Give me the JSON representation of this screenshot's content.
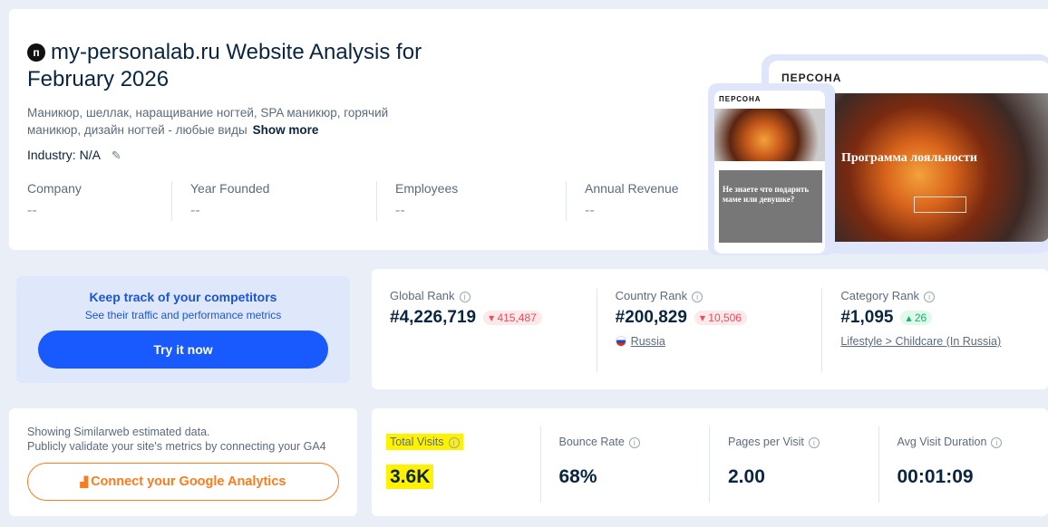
{
  "header": {
    "favicon_letter": "п",
    "title": "my-personalab.ru Website Analysis for February 2026",
    "description": "Маникюр, шеллак, наращивание ногтей, SPA маникюр, горячий маникюр, дизайн ногтей - любые виды",
    "show_more": "Show more",
    "industry": "Industry: N/A",
    "facts": [
      {
        "label": "Company",
        "value": "--"
      },
      {
        "label": "Year Founded",
        "value": "--"
      },
      {
        "label": "Employees",
        "value": "--"
      },
      {
        "label": "Annual Revenue",
        "value": "--"
      }
    ],
    "preview": {
      "logo": "ПЕРСОНА",
      "hero_text": "Программа лояльности",
      "mobile_text": "Не знаете что подарить маме или девушке?"
    }
  },
  "promo": {
    "title": "Keep track of your competitors",
    "subtitle": "See their traffic and performance metrics",
    "button": "Try it now"
  },
  "ranks": [
    {
      "label": "Global Rank",
      "value": "#4,226,719",
      "change": "415,487",
      "direction": "down"
    },
    {
      "label": "Country Rank",
      "value": "#200,829",
      "change": "10,506",
      "direction": "down",
      "sub": "Russia"
    },
    {
      "label": "Category Rank",
      "value": "#1,095",
      "change": "26",
      "direction": "up",
      "sub": "Lifestyle > Childcare (In Russia)"
    }
  ],
  "ga": {
    "line1": "Showing Similarweb estimated data.",
    "line2": "Publicly validate your site's metrics by connecting your GA4",
    "button": "Connect your Google Analytics"
  },
  "metrics": [
    {
      "label": "Total Visits",
      "value": "3.6K"
    },
    {
      "label": "Bounce Rate",
      "value": "68%"
    },
    {
      "label": "Pages per Visit",
      "value": "2.00"
    },
    {
      "label": "Avg Visit Duration",
      "value": "00:01:09"
    }
  ],
  "colors": {
    "accent": "#195afe",
    "orange": "#ff7a1a",
    "highlight": "#fff200"
  }
}
